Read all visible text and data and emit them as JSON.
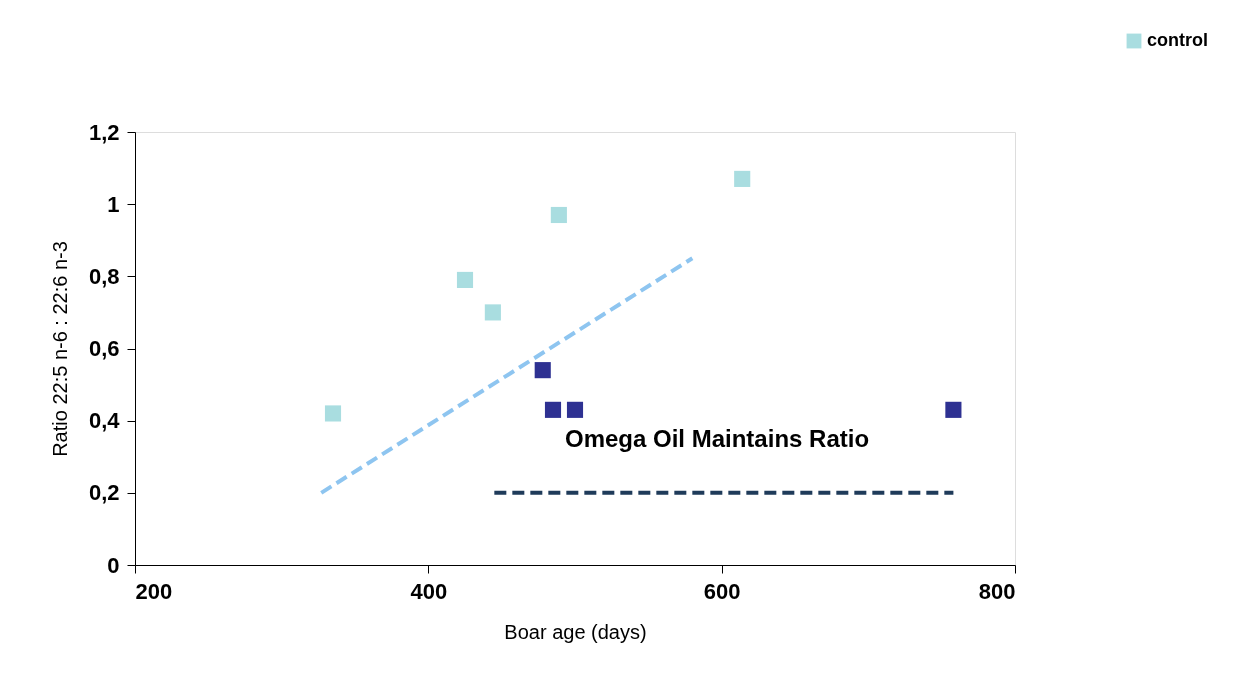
{
  "chart_data": {
    "type": "scatter",
    "xlabel": "Boar age (days)",
    "ylabel": "Ratio 22:5 n-6 : 22:6 n-3",
    "series": [
      {
        "name": "control",
        "marker": "square",
        "color": "#a9dde0",
        "x": [
          335,
          425,
          444,
          489,
          614
        ],
        "values": [
          0.42,
          0.79,
          0.7,
          0.97,
          1.07
        ]
      },
      {
        "marker": "square",
        "color": "#2e3192",
        "x": [
          478,
          485,
          500,
          758
        ],
        "values": [
          0.54,
          0.43,
          0.43,
          0.43
        ]
      },
      {
        "type": "line",
        "marker": "none",
        "color": "#8ec5f0",
        "line_style": "dashed",
        "x": [
          327,
          580
        ],
        "values": [
          0.2,
          0.85
        ]
      },
      {
        "type": "line",
        "marker": "none",
        "color": "#1f3b5a",
        "line_style": "dashed",
        "x": [
          445,
          758
        ],
        "values": [
          0.2,
          0.2
        ]
      }
    ],
    "annotations": [
      "Omega Oil Maintains Ratio"
    ],
    "xlim": [
      200,
      800
    ],
    "xticks": [
      200,
      400,
      600,
      800
    ],
    "ylim": [
      0,
      1.2
    ],
    "yticks": [
      0,
      {
        "value": 0.2,
        "label": "0,2"
      },
      {
        "value": 0.4,
        "label": "0,4"
      },
      {
        "value": 0.6,
        "label": "0,6"
      },
      {
        "value": 0.8,
        "label": "0,8"
      },
      1,
      {
        "value": 1.2,
        "label": "1,2"
      }
    ],
    "grid": false,
    "legend": "top right"
  }
}
